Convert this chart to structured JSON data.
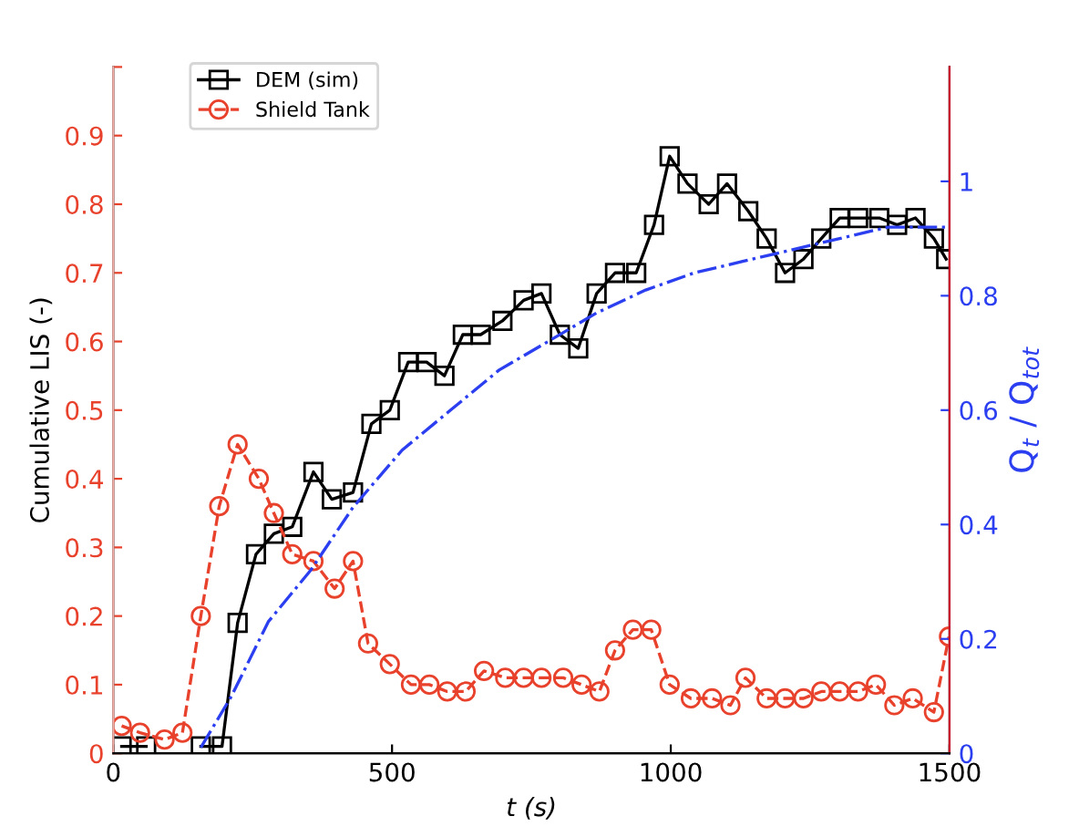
{
  "chart_data": {
    "type": "line",
    "xlabel": "t (s)",
    "ylabel": "Cumulative LIS (-)",
    "y2label": "Q$_{t}$ / Q$_{tot}$",
    "xlim": [
      0,
      1500
    ],
    "xticks": [
      0,
      500,
      1000,
      1500
    ],
    "ylim": [
      0,
      1.0
    ],
    "yticks": [
      0,
      0.1,
      0.2,
      0.3,
      0.4,
      0.5,
      0.6,
      0.7,
      0.8,
      0.9,
      {
        "value": 1.0,
        "label": null
      }
    ],
    "y2lim": [
      0,
      1.2
    ],
    "y2ticks": [
      0,
      0.2,
      0.4,
      0.6,
      0.8,
      1
    ],
    "grid": false,
    "legend": "top left",
    "series": [
      {
        "name": "DEM (sim)",
        "color": "#000000",
        "marker": "square",
        "line_style": "solid",
        "x": [
          15,
          59,
          103,
          157,
          195,
          223,
          256,
          288,
          321,
          359,
          392,
          430,
          463,
          496,
          529,
          562,
          594,
          627,
          659,
          698,
          736,
          768,
          801,
          834,
          867,
          900,
          938,
          970,
          998,
          1030,
          1068,
          1101,
          1139,
          1172,
          1205,
          1238,
          1270,
          1303,
          1336,
          1374,
          1406,
          1439,
          1472,
          1494
        ],
        "values": [
          0.01,
          0.01,
          null,
          0.01,
          0.01,
          0.19,
          0.29,
          0.32,
          0.33,
          0.41,
          0.37,
          0.38,
          0.48,
          0.5,
          0.57,
          0.57,
          0.55,
          0.61,
          0.61,
          0.63,
          0.66,
          0.67,
          0.61,
          0.59,
          0.67,
          0.7,
          0.7,
          0.77,
          0.87,
          0.83,
          0.8,
          0.83,
          0.79,
          0.75,
          0.7,
          0.72,
          0.75,
          0.78,
          0.78,
          0.78,
          0.77,
          0.78,
          0.75,
          0.72
        ]
      },
      {
        "name": "Shield Tank",
        "color": "#e8412c",
        "marker": "circle",
        "line_style": "dashed",
        "x": [
          15,
          48,
          92,
          124,
          157,
          190,
          223,
          261,
          288,
          321,
          359,
          397,
          430,
          457,
          496,
          534,
          567,
          599,
          632,
          665,
          703,
          736,
          768,
          807,
          840,
          872,
          900,
          932,
          965,
          998,
          1036,
          1074,
          1107,
          1134,
          1172,
          1205,
          1238,
          1270,
          1303,
          1336,
          1368,
          1401,
          1434,
          1472,
          1499
        ],
        "values": [
          0.04,
          0.03,
          0.02,
          0.03,
          0.2,
          0.36,
          0.45,
          0.4,
          0.35,
          0.29,
          0.28,
          0.24,
          0.28,
          0.16,
          0.13,
          0.1,
          0.1,
          0.09,
          0.09,
          0.12,
          0.11,
          0.11,
          0.11,
          0.11,
          0.1,
          0.09,
          0.15,
          0.18,
          0.18,
          0.1,
          0.08,
          0.08,
          0.07,
          0.11,
          0.08,
          0.08,
          0.08,
          0.09,
          0.09,
          0.09,
          0.1,
          0.07,
          0.08,
          0.06,
          0.17
        ]
      },
      {
        "color": "#2b3ff0",
        "marker": "none",
        "line_style": "dashdot",
        "axis": "y2",
        "x": [
          157,
          212,
          278,
          354,
          430,
          518,
          605,
          692,
          780,
          867,
          955,
          1042,
          1129,
          1216,
          1303,
          1390,
          1456,
          1500
        ],
        "values": [
          0.01,
          0.1,
          0.23,
          0.32,
          0.43,
          0.53,
          0.6,
          0.67,
          0.72,
          0.77,
          0.81,
          0.84,
          0.86,
          0.88,
          0.9,
          0.92,
          0.92,
          0.92
        ]
      }
    ]
  }
}
